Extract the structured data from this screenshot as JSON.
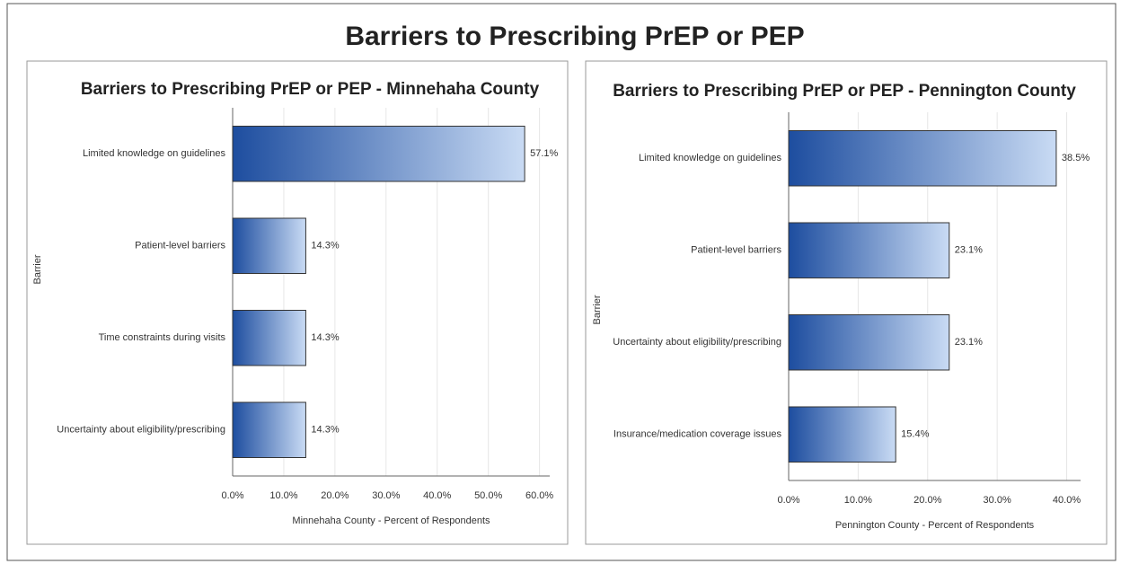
{
  "title": "Barriers to Prescribing PrEP or PEP",
  "chart_data": [
    {
      "type": "bar",
      "orientation": "horizontal",
      "title": "Barriers to Prescribing PrEP or PEP - Minnehaha County",
      "ylabel": "Barrier",
      "xlabel": "Minnehaha County - Percent of Respondents",
      "categories": [
        "Limited knowledge on guidelines",
        "Patient-level barriers",
        "Time constraints during visits",
        "Uncertainty about eligibility/prescribing"
      ],
      "values": [
        57.1,
        14.3,
        14.3,
        14.3
      ],
      "value_labels": [
        "57.1%",
        "14.3%",
        "14.3%",
        "14.3%"
      ],
      "colors": [
        "#1d4d9f",
        "#c9dbf4"
      ],
      "xlim": [
        0,
        62
      ],
      "xticks": [
        {
          "value": 0,
          "label": "0.0%"
        },
        {
          "value": 10,
          "label": "10.0%"
        },
        {
          "value": 20,
          "label": "20.0%"
        },
        {
          "value": 30,
          "label": "30.0%"
        },
        {
          "value": 40,
          "label": "40.0%"
        },
        {
          "value": 50,
          "label": "50.0%"
        },
        {
          "value": 60,
          "label": "60.0%"
        }
      ],
      "grid": true
    },
    {
      "type": "bar",
      "orientation": "horizontal",
      "title": "Barriers to Prescribing PrEP or PEP - Pennington County",
      "ylabel": "Barrier",
      "xlabel": "Pennington County - Percent of Respondents",
      "categories": [
        "Limited knowledge on guidelines",
        "Patient-level barriers",
        "Uncertainty about eligibility/prescribing",
        "Insurance/medication coverage issues"
      ],
      "values": [
        38.5,
        23.1,
        23.1,
        15.4
      ],
      "value_labels": [
        "38.5%",
        "23.1%",
        "23.1%",
        "15.4%"
      ],
      "colors": [
        "#1d4d9f",
        "#c9dbf4"
      ],
      "xlim": [
        0,
        42
      ],
      "xticks": [
        {
          "value": 0,
          "label": "0.0%"
        },
        {
          "value": 10,
          "label": "10.0%"
        },
        {
          "value": 20,
          "label": "20.0%"
        },
        {
          "value": 30,
          "label": "30.0%"
        },
        {
          "value": 40,
          "label": "40.0%"
        }
      ],
      "grid": true
    }
  ]
}
